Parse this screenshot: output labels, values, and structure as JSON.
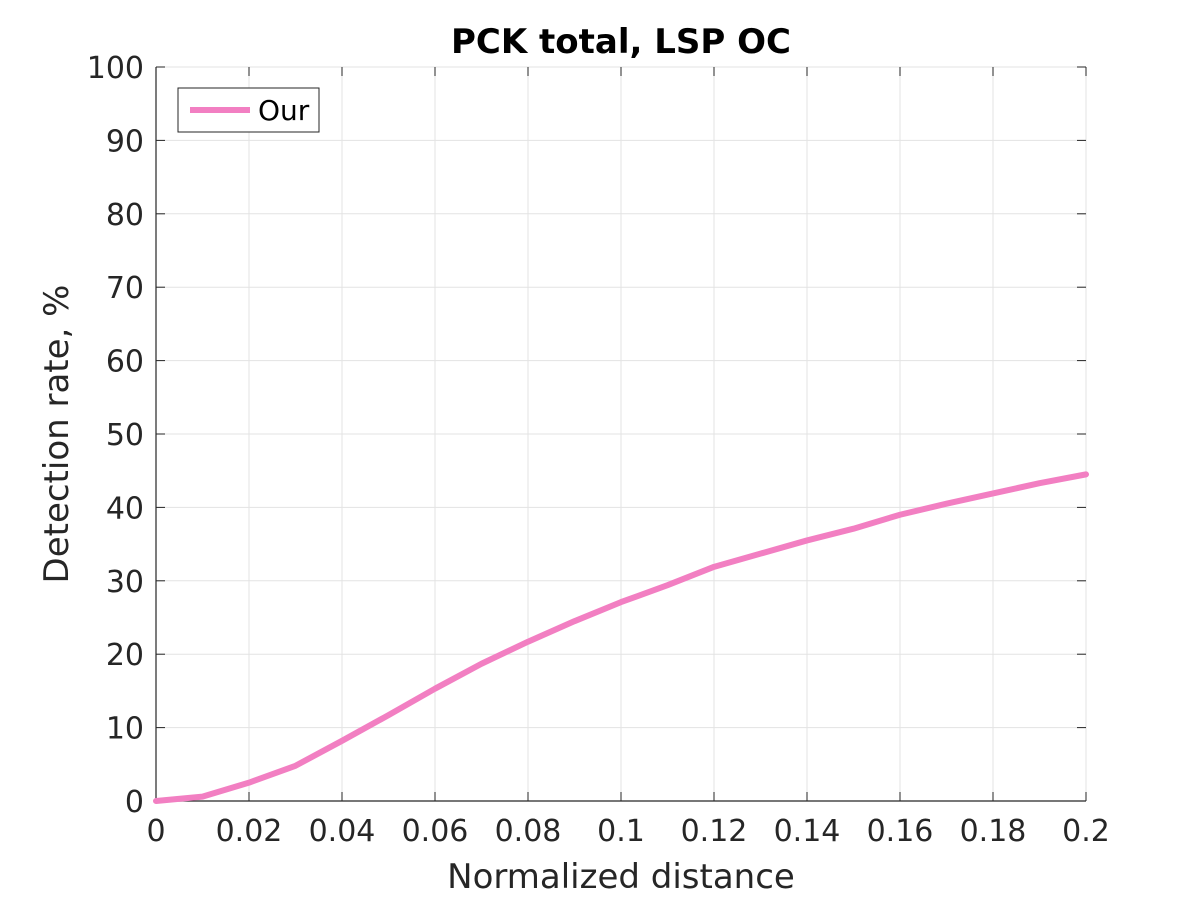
{
  "chart_data": {
    "type": "line",
    "title": "PCK total, LSP OC",
    "xlabel": "Normalized distance",
    "ylabel": "Detection rate, %",
    "xlim": [
      0,
      0.2
    ],
    "ylim": [
      0,
      100
    ],
    "x_ticks": [
      "0",
      "0.02",
      "0.04",
      "0.06",
      "0.08",
      "0.1",
      "0.12",
      "0.14",
      "0.16",
      "0.18",
      "0.2"
    ],
    "y_ticks": [
      "0",
      "10",
      "20",
      "30",
      "40",
      "50",
      "60",
      "70",
      "80",
      "90",
      "100"
    ],
    "grid": true,
    "legend_position": "top-left",
    "series": [
      {
        "name": "Our",
        "color": "#f27fc2",
        "x": [
          0,
          0.01,
          0.02,
          0.03,
          0.04,
          0.05,
          0.06,
          0.07,
          0.08,
          0.09,
          0.1,
          0.11,
          0.12,
          0.13,
          0.14,
          0.15,
          0.16,
          0.17,
          0.18,
          0.19,
          0.2
        ],
        "y": [
          0,
          0.6,
          2.5,
          4.8,
          8.2,
          11.7,
          15.3,
          18.7,
          21.7,
          24.5,
          27.1,
          29.4,
          31.9,
          33.7,
          35.5,
          37.1,
          39.0,
          40.5,
          41.9,
          43.3,
          44.5
        ]
      }
    ]
  }
}
